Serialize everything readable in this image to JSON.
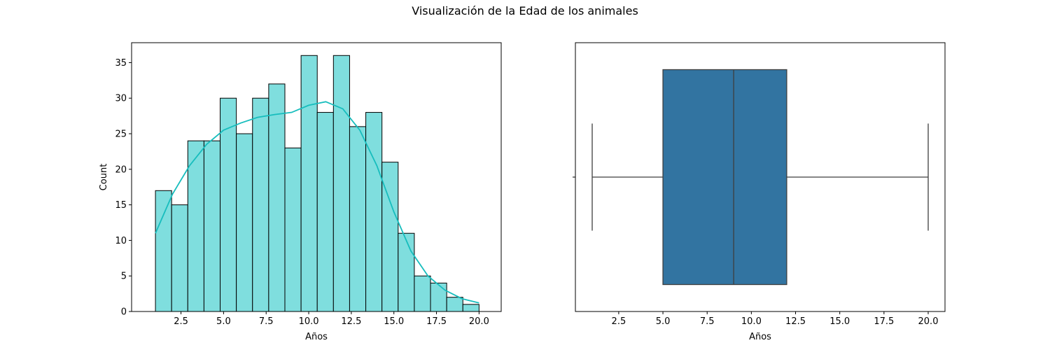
{
  "figure": {
    "title": "Visualización de la Edad de los animales"
  },
  "colors": {
    "hist_fill": "#7FDEDE",
    "hist_edge": "#000000",
    "kde_line": "#17BDBD",
    "box_fill": "#3274A1",
    "box_line": "#3F3F3F"
  },
  "chart_data": [
    {
      "type": "bar",
      "subtype": "histogram-with-kde",
      "title": "",
      "xlabel": "Años",
      "ylabel": "Count",
      "bins": {
        "edges": [
          1.0,
          1.95,
          2.9,
          3.85,
          4.8,
          5.75,
          6.7,
          7.65,
          8.6,
          9.55,
          10.5,
          11.45,
          12.4,
          13.35,
          14.3,
          15.25,
          16.2,
          17.15,
          18.1,
          19.05,
          20.0
        ],
        "counts": [
          17,
          15,
          24,
          24,
          30,
          25,
          30,
          32,
          23,
          36,
          28,
          36,
          26,
          28,
          21,
          11,
          5,
          4,
          2,
          1
        ]
      },
      "kde": {
        "x": [
          1.0,
          2.0,
          3.0,
          4.0,
          5.0,
          6.0,
          7.0,
          8.0,
          9.0,
          10.0,
          11.0,
          12.0,
          13.0,
          14.0,
          15.0,
          16.0,
          17.0,
          18.0,
          19.0,
          20.0
        ],
        "y": [
          11,
          16.5,
          20.5,
          23.5,
          25.5,
          26.5,
          27.3,
          27.7,
          28.0,
          29.0,
          29.5,
          28.5,
          25.5,
          20.5,
          14.0,
          8.5,
          5.0,
          3.0,
          1.8,
          1.2
        ]
      },
      "xlim": [
        -0.4,
        21.3
      ],
      "ylim": [
        0,
        37.8
      ],
      "xticks": [
        2.5,
        5.0,
        7.5,
        10.0,
        12.5,
        15.0,
        17.5,
        20.0
      ],
      "xtick_labels": [
        "2.5",
        "5.0",
        "7.5",
        "10.0",
        "12.5",
        "15.0",
        "17.5",
        "20.0"
      ],
      "yticks": [
        0,
        5,
        10,
        15,
        20,
        25,
        30,
        35
      ],
      "ytick_labels": [
        "0",
        "5",
        "10",
        "15",
        "20",
        "25",
        "30",
        "35"
      ],
      "grid": false
    },
    {
      "type": "box",
      "title": "",
      "xlabel": "Años",
      "ylabel": "",
      "stats": {
        "min": 1.0,
        "q1": 5.0,
        "median": 9.0,
        "q3": 12.0,
        "max": 20.0
      },
      "xlim": [
        0.05,
        20.95
      ],
      "xticks": [
        2.5,
        5.0,
        7.5,
        10.0,
        12.5,
        15.0,
        17.5,
        20.0
      ],
      "xtick_labels": [
        "2.5",
        "5.0",
        "7.5",
        "10.0",
        "12.5",
        "15.0",
        "17.5",
        "20.0"
      ],
      "grid": false
    }
  ]
}
